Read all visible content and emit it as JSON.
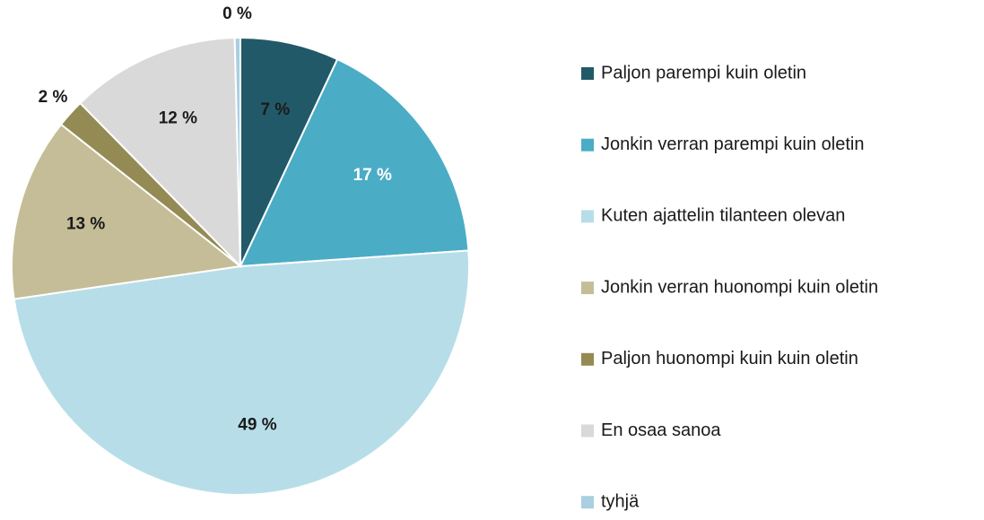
{
  "chart_data": {
    "type": "pie",
    "categories": [
      "Paljon parempi kuin oletin",
      "Jonkin verran parempi kuin oletin",
      "Kuten ajattelin tilanteen olevan",
      "Jonkin verran huonompi kuin oletin",
      "Paljon huonompi kuin kuin oletin",
      "En osaa sanoa",
      "tyhjä"
    ],
    "values": [
      7,
      17,
      49,
      13,
      2,
      12,
      0.4
    ],
    "value_labels": [
      "7 %",
      "17 %",
      "49 %",
      "13 %",
      "2 %",
      "12 %",
      "0 %"
    ],
    "colors": [
      "#215968",
      "#4bacc6",
      "#b7dee8",
      "#c4bd97",
      "#948a54",
      "#d9d9d9",
      "#a9cfe0"
    ],
    "legend": "right"
  }
}
